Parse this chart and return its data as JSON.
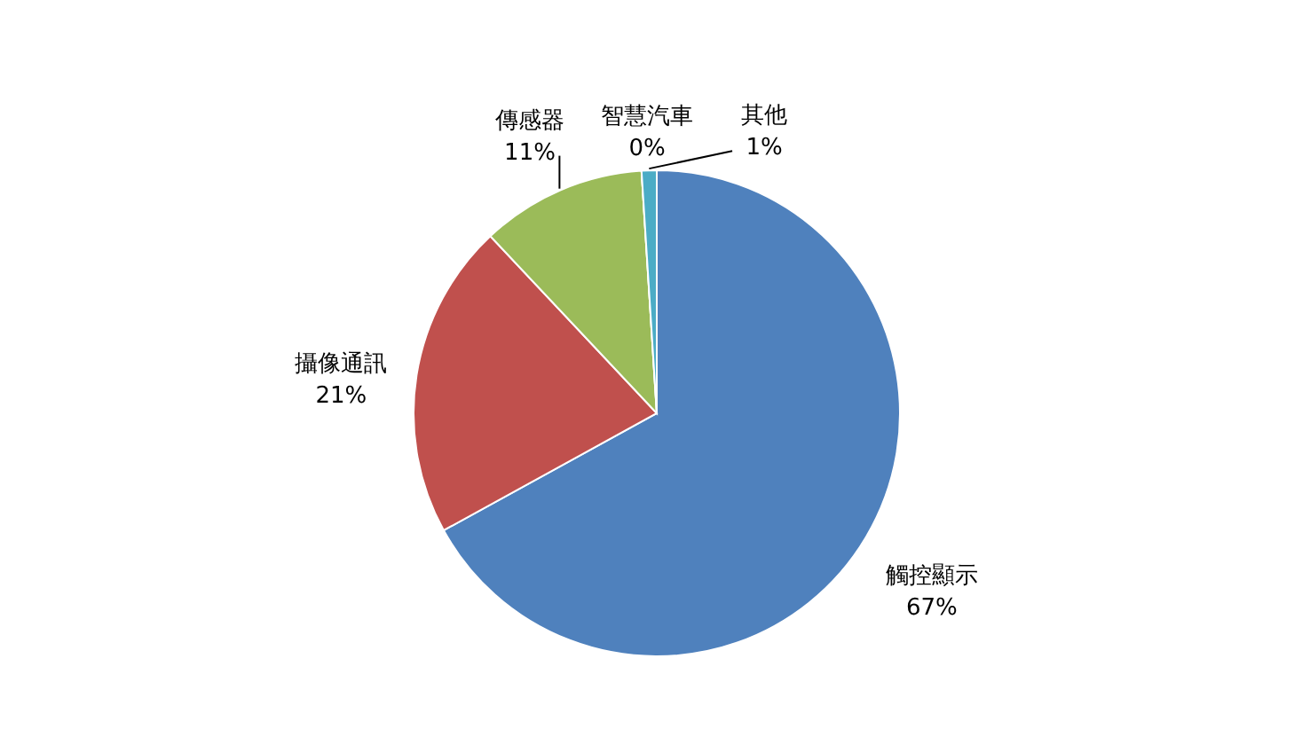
{
  "chart_data": {
    "type": "pie",
    "categories": [
      "觸控顯示",
      "攝像通訊",
      "傳感器",
      "智慧汽車",
      "其他"
    ],
    "values": [
      67,
      21,
      11,
      0,
      1
    ],
    "colors": [
      "#4f81bd",
      "#c0504d",
      "#9bbb59",
      "#8064a2",
      "#4bacc6"
    ],
    "value_labels": [
      "67%",
      "21%",
      "11%",
      "0%",
      "1%"
    ]
  }
}
